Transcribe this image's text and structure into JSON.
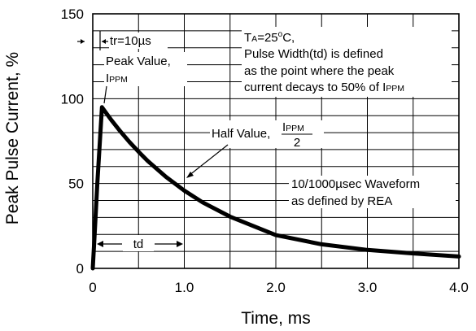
{
  "chart_data": {
    "type": "line",
    "title": "",
    "xlabel": "Time, ms",
    "ylabel": "Peak Pulse Current, %",
    "xlim": [
      0,
      4.0
    ],
    "ylim": [
      0,
      150
    ],
    "x_ticks": [
      "0",
      "1.0",
      "2.0",
      "3.0",
      "4.0"
    ],
    "y_ticks": [
      "0",
      "50",
      "100",
      "150"
    ],
    "grid": true,
    "series": [
      {
        "x": [
          0.0,
          0.02,
          0.05,
          0.1,
          0.2,
          0.3,
          0.4,
          0.5,
          0.6,
          0.8,
          1.0,
          1.2,
          1.5,
          2.0,
          2.5,
          3.0,
          3.5,
          4.0
        ],
        "y": [
          0,
          20,
          50,
          95,
          87.6,
          80.8,
          74.5,
          68.7,
          63.3,
          53.9,
          45.8,
          38.9,
          30.5,
          19.6,
          14.2,
          10.9,
          8.8,
          7.0
        ]
      }
    ],
    "annotations": {
      "rise_time": "tr=10µs",
      "peak_value_line1": "Peak Value,",
      "peak_value_line2_main": "I",
      "peak_value_line2_sub": "PPM",
      "conditions_line1_main": "T",
      "conditions_line1_sub": "A",
      "conditions_line1_rest": "=25",
      "conditions_line1_deg": "o",
      "conditions_line1_end": "C,",
      "conditions_line2": "Pulse Width(td) is defined",
      "conditions_line3": "as the point where the peak",
      "conditions_line4_main": "current decays to 50% of I",
      "conditions_line4_sub": "PPM",
      "half_value_label": "Half Value,",
      "half_value_num_main": "I",
      "half_value_num_sub": "PPM",
      "half_value_den": "2",
      "waveform_line1": "10/1000µsec Waveform",
      "waveform_line2": "as defined by REA",
      "td_label": "td"
    }
  }
}
